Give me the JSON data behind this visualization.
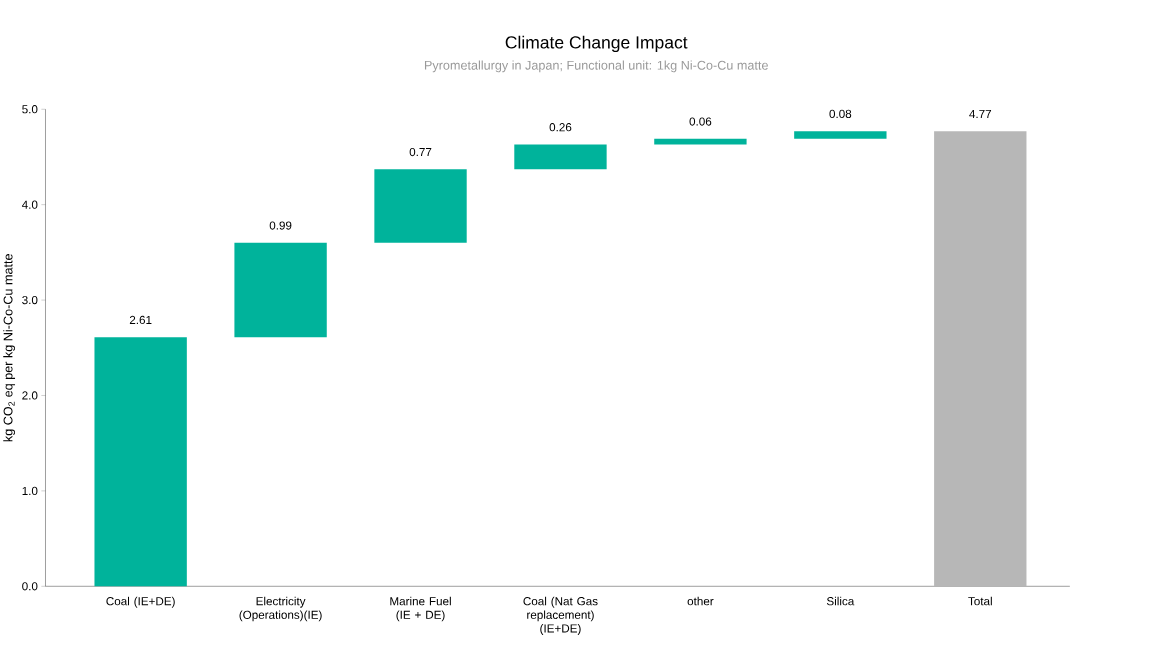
{
  "chart_data": {
    "type": "bar",
    "title": "Climate Change Impact",
    "subtitle": "Pyrometallurgy in Japan; Functional unit: 1kg Ni-Co-Cu matte",
    "ylabel": "kg CO$_{2}$ eq per kg Ni-Co-Cu matte",
    "categories": [
      "Coal (IE+DE)",
      "Electricity (Operations)(IE)",
      "Marine Fuel (IE + DE)",
      "Coal (Nat Gas replacement) (IE+DE)",
      "other",
      "Silica",
      "Total"
    ],
    "values": [
      2.61,
      0.99,
      0.77,
      0.26,
      0.06,
      0.08,
      4.77
    ],
    "base": [
      0,
      2.61,
      3.6,
      4.37,
      4.63,
      4.69,
      0
    ],
    "value_labels": [
      "2.61",
      "0.99",
      "0.77",
      "0.26",
      "0.06",
      "0.08",
      "4.77"
    ],
    "colors": [
      "#00b39b",
      "#00b39b",
      "#00b39b",
      "#00b39b",
      "#00b39b",
      "#00b39b",
      "#b7b7b7"
    ],
    "ylim": [
      0,
      5
    ],
    "yticks": [
      {
        "value": 0,
        "label": "0.0"
      },
      {
        "value": 1,
        "label": "1.0"
      },
      {
        "value": 2,
        "label": "2.0"
      },
      {
        "value": 3,
        "label": "3.0"
      },
      {
        "value": 4,
        "label": "4.0"
      },
      {
        "value": 5,
        "label": "5.0"
      }
    ],
    "grid": false
  }
}
